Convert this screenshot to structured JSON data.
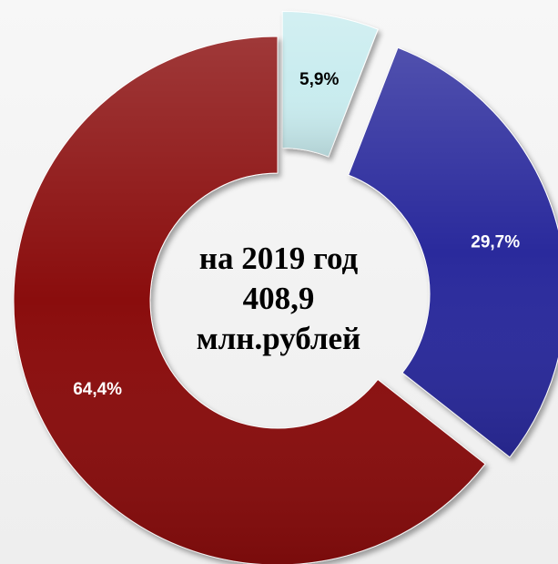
{
  "chart_data": {
    "type": "pie",
    "variant": "donut",
    "slices": [
      {
        "label": "5,9%",
        "value": 5.9,
        "color": "#c9ecef",
        "label_color": "#000000",
        "exploded": true
      },
      {
        "label": "29,7%",
        "value": 29.7,
        "color": "#2a2a9c",
        "label_color": "#ffffff",
        "exploded": true
      },
      {
        "label": "64,4%",
        "value": 64.4,
        "color": "#8a0a0e",
        "label_color": "#ffffff",
        "exploded": false
      }
    ],
    "center_text": {
      "line1": "на 2019 год",
      "line2": "408,9",
      "line3": "млн.рублей"
    },
    "legend": "none"
  }
}
